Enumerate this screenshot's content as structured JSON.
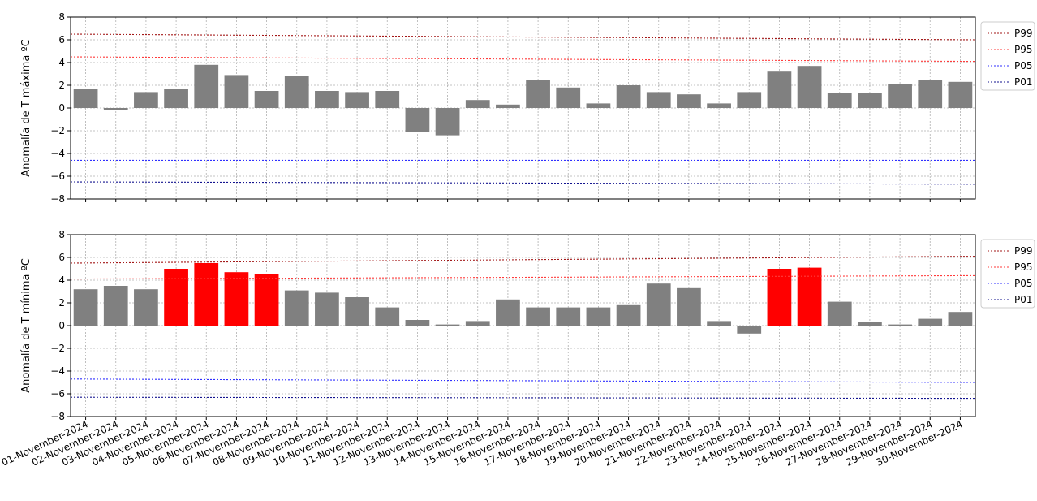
{
  "chart_data": [
    {
      "type": "bar",
      "ylabel": "Anomalía de T máxima ºC",
      "ylim": [
        -8,
        8
      ],
      "yticks": [
        -8,
        -6,
        -4,
        -2,
        0,
        2,
        4,
        6,
        8
      ],
      "grid": true,
      "legend_position": "outside-right",
      "x": [
        "01-November-2024",
        "02-November-2024",
        "03-November-2024",
        "04-November-2024",
        "05-November-2024",
        "06-November-2024",
        "07-November-2024",
        "08-November-2024",
        "09-November-2024",
        "10-November-2024",
        "11-November-2024",
        "12-November-2024",
        "13-November-2024",
        "14-November-2024",
        "15-November-2024",
        "16-November-2024",
        "17-November-2024",
        "18-November-2024",
        "19-November-2024",
        "20-November-2024",
        "21-November-2024",
        "22-November-2024",
        "23-November-2024",
        "24-November-2024",
        "25-November-2024",
        "26-November-2024",
        "27-November-2024",
        "28-November-2024",
        "29-November-2024",
        "30-November-2024"
      ],
      "values": [
        1.7,
        -0.2,
        1.4,
        1.7,
        3.8,
        2.9,
        1.5,
        2.8,
        1.5,
        1.4,
        1.5,
        -2.1,
        -2.4,
        0.7,
        0.3,
        2.5,
        1.8,
        0.4,
        2.0,
        1.4,
        1.2,
        0.4,
        1.4,
        3.2,
        3.7,
        1.3,
        1.3,
        2.1,
        2.5,
        2.3
      ],
      "bar_colors": [
        "#808080",
        "#808080",
        "#808080",
        "#808080",
        "#808080",
        "#808080",
        "#808080",
        "#808080",
        "#808080",
        "#808080",
        "#808080",
        "#808080",
        "#808080",
        "#808080",
        "#808080",
        "#808080",
        "#808080",
        "#808080",
        "#808080",
        "#808080",
        "#808080",
        "#808080",
        "#808080",
        "#808080",
        "#808080",
        "#808080",
        "#808080",
        "#808080",
        "#808080",
        "#808080"
      ],
      "series": [
        {
          "name": "P99",
          "color": "#a31818",
          "start": 6.5,
          "end": 6.0
        },
        {
          "name": "P95",
          "color": "#ff3b3b",
          "start": 4.5,
          "end": 4.1
        },
        {
          "name": "P05",
          "color": "#3030ff",
          "start": -4.6,
          "end": -4.6
        },
        {
          "name": "P01",
          "color": "#14148f",
          "start": -6.5,
          "end": -6.7
        }
      ]
    },
    {
      "type": "bar",
      "ylabel": "Anomalía de T mínima ºC",
      "ylim": [
        -8,
        8
      ],
      "yticks": [
        -8,
        -6,
        -4,
        -2,
        0,
        2,
        4,
        6,
        8
      ],
      "grid": true,
      "legend_position": "outside-right",
      "x": [
        "01-November-2024",
        "02-November-2024",
        "03-November-2024",
        "04-November-2024",
        "05-November-2024",
        "06-November-2024",
        "07-November-2024",
        "08-November-2024",
        "09-November-2024",
        "10-November-2024",
        "11-November-2024",
        "12-November-2024",
        "13-November-2024",
        "14-November-2024",
        "15-November-2024",
        "16-November-2024",
        "17-November-2024",
        "18-November-2024",
        "19-November-2024",
        "20-November-2024",
        "21-November-2024",
        "22-November-2024",
        "23-November-2024",
        "24-November-2024",
        "25-November-2024",
        "26-November-2024",
        "27-November-2024",
        "28-November-2024",
        "29-November-2024",
        "30-November-2024"
      ],
      "values": [
        3.2,
        3.5,
        3.2,
        5.0,
        5.5,
        4.7,
        4.5,
        3.1,
        2.9,
        2.5,
        1.6,
        0.5,
        0.1,
        0.4,
        2.3,
        1.6,
        1.6,
        1.6,
        1.8,
        3.7,
        3.3,
        0.4,
        -0.7,
        5.0,
        5.1,
        2.1,
        0.3,
        0.1,
        0.6,
        1.2
      ],
      "bar_colors": [
        "#808080",
        "#808080",
        "#808080",
        "#ff0000",
        "#ff0000",
        "#ff0000",
        "#ff0000",
        "#808080",
        "#808080",
        "#808080",
        "#808080",
        "#808080",
        "#808080",
        "#808080",
        "#808080",
        "#808080",
        "#808080",
        "#808080",
        "#808080",
        "#808080",
        "#808080",
        "#808080",
        "#808080",
        "#ff0000",
        "#ff0000",
        "#808080",
        "#808080",
        "#808080",
        "#808080",
        "#808080"
      ],
      "series": [
        {
          "name": "P99",
          "color": "#a31818",
          "start": 5.5,
          "end": 6.1
        },
        {
          "name": "P95",
          "color": "#ff3b3b",
          "start": 4.1,
          "end": 4.4
        },
        {
          "name": "P05",
          "color": "#3030ff",
          "start": -4.7,
          "end": -5.0
        },
        {
          "name": "P01",
          "color": "#14148f",
          "start": -6.3,
          "end": -6.4
        }
      ]
    }
  ]
}
